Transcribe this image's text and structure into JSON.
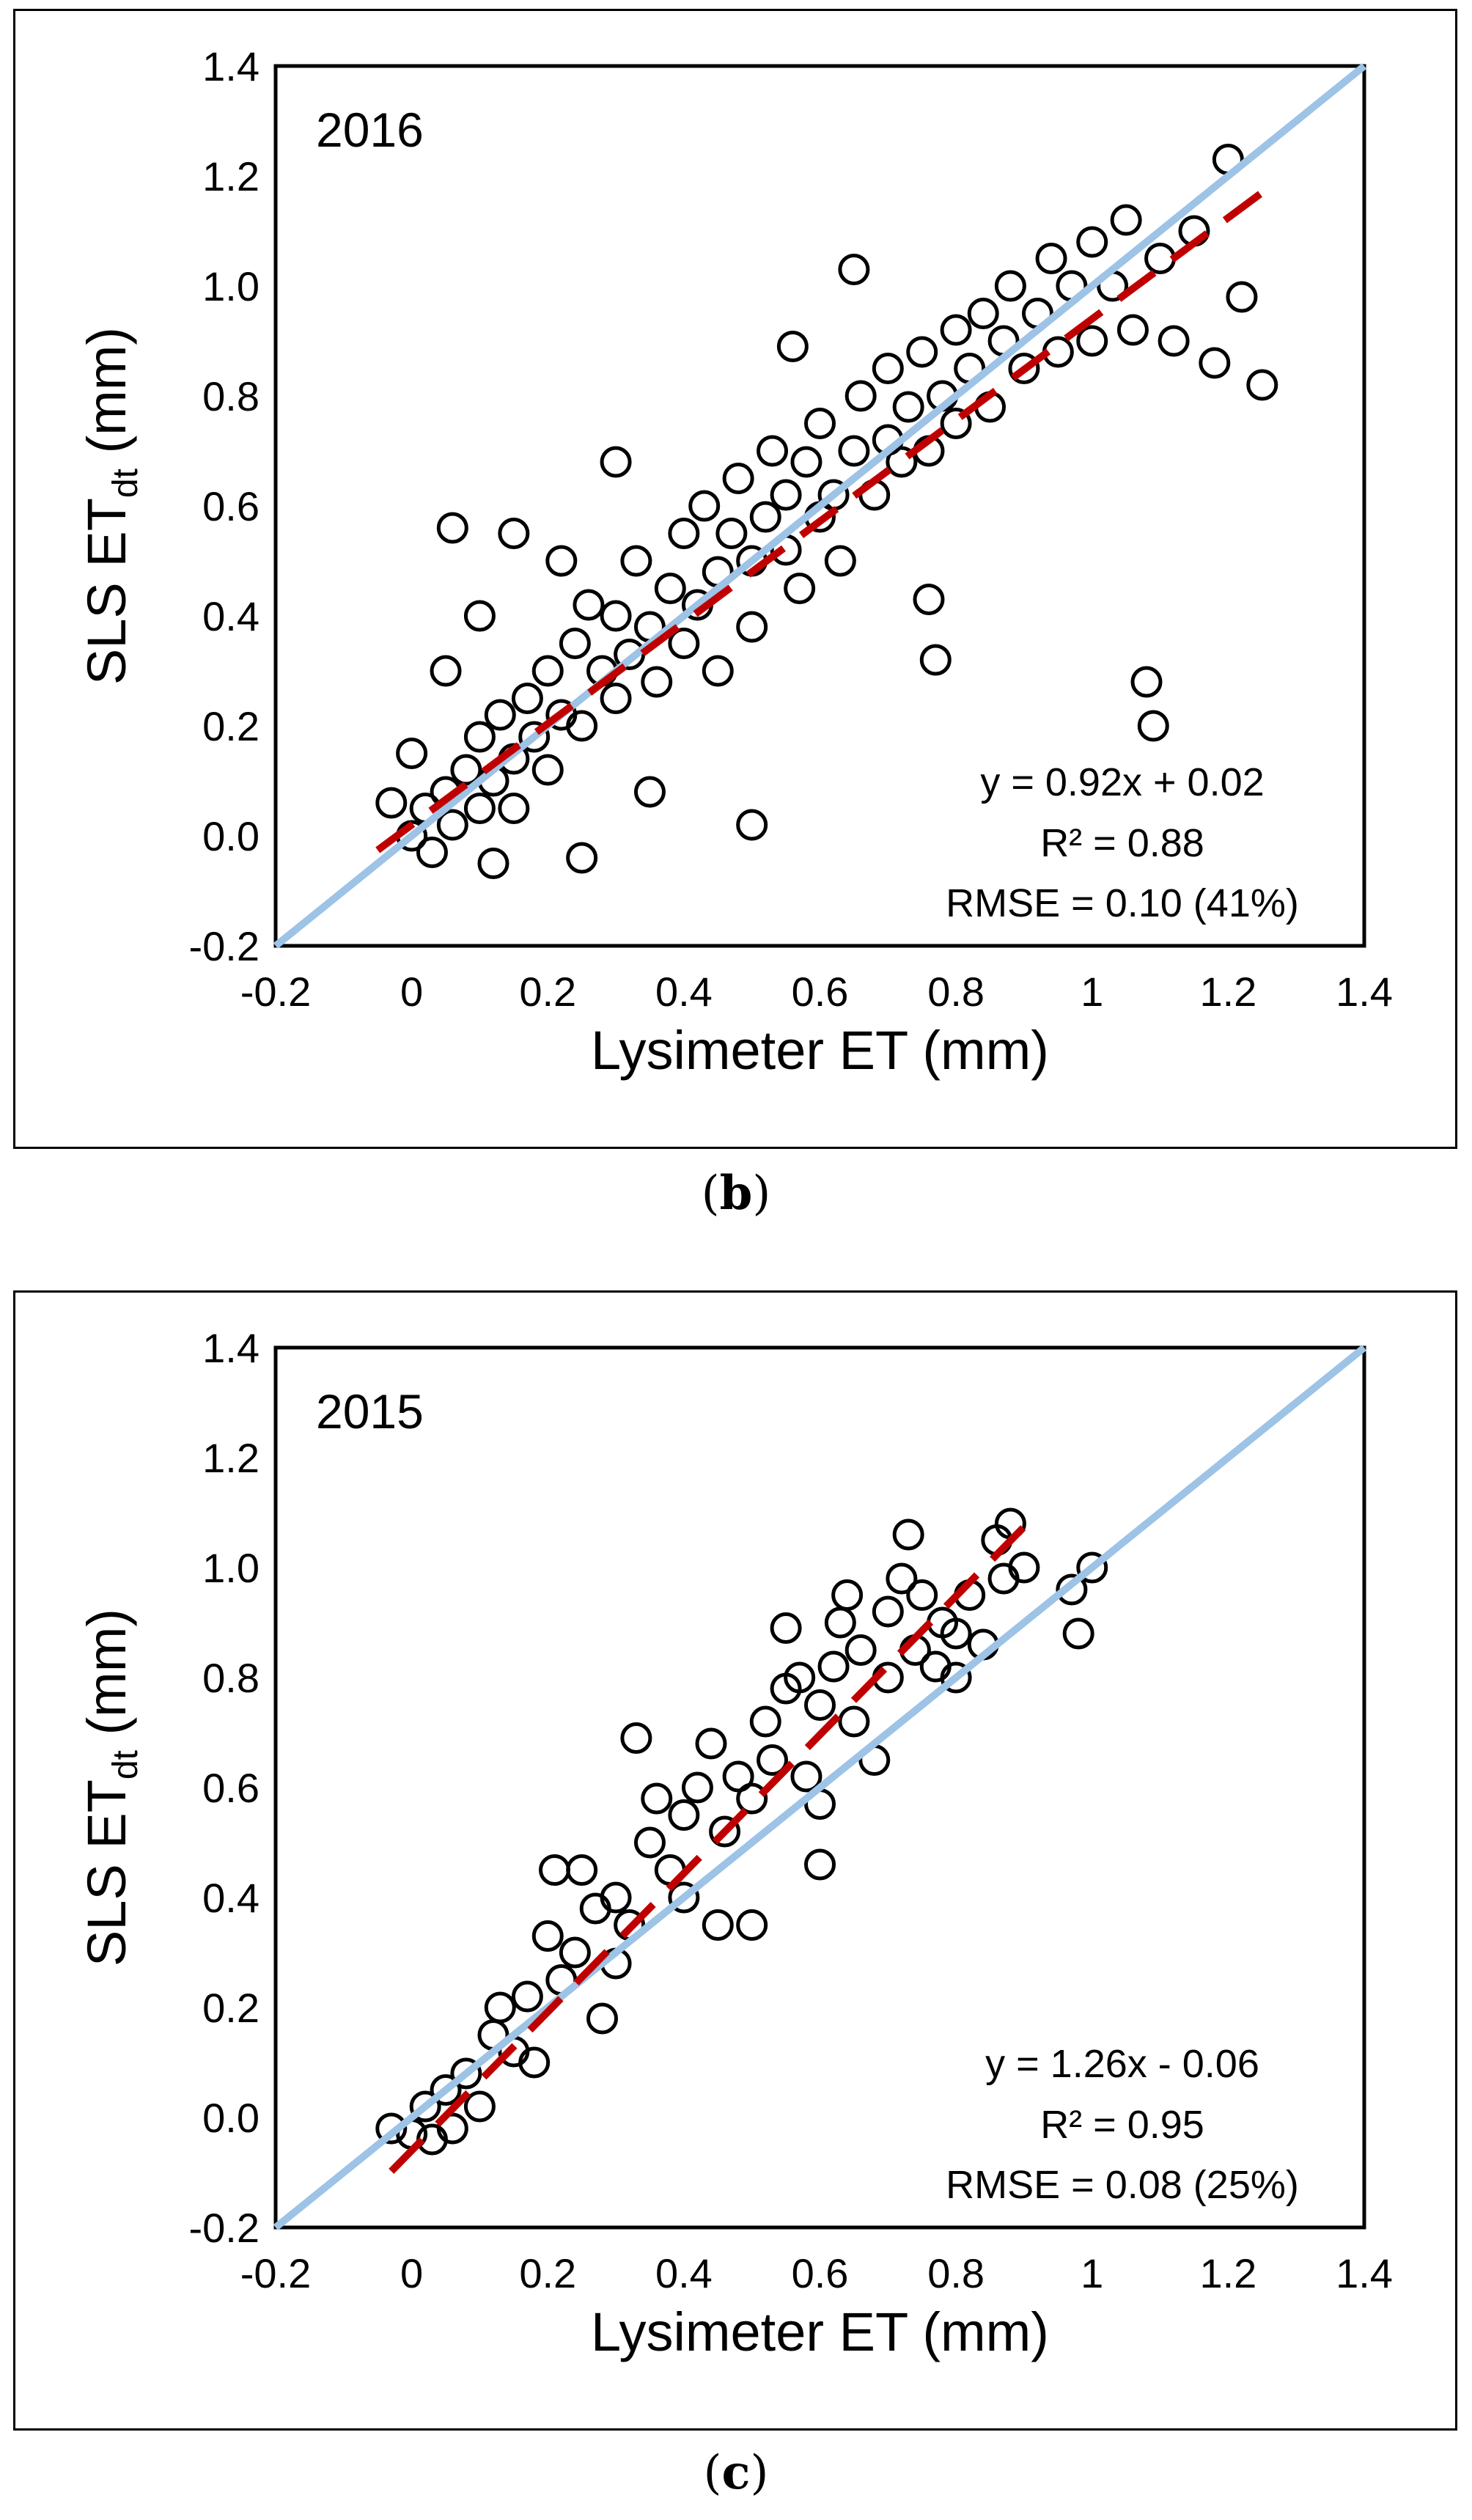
{
  "chart_data": [
    {
      "type": "scatter",
      "panel": "b",
      "year_label": "2016",
      "xlabel": "Lysimeter ET (mm)",
      "ylabel_main": "SLS ET",
      "ylabel_sub": "dt",
      "ylabel_unit": " (mm)",
      "xlim": [
        -0.2,
        1.4
      ],
      "ylim": [
        -0.2,
        1.4
      ],
      "x_ticks": [
        "-0.2",
        "0",
        "0.2",
        "0.4",
        "0.6",
        "0.8",
        "1",
        "1.2",
        "1.4"
      ],
      "y_ticks": [
        "-0.2",
        "0.0",
        "0.2",
        "0.4",
        "0.6",
        "0.8",
        "1.0",
        "1.2",
        "1.4"
      ],
      "x_tick_values": [
        -0.2,
        0,
        0.2,
        0.4,
        0.6,
        0.8,
        1.0,
        1.2,
        1.4
      ],
      "y_tick_values": [
        -0.2,
        0,
        0.2,
        0.4,
        0.6,
        0.8,
        1.0,
        1.2,
        1.4
      ],
      "regression": {
        "slope": 0.92,
        "intercept": 0.02,
        "x_range": [
          -0.05,
          1.25
        ],
        "color": "#c00000"
      },
      "one_to_one": {
        "x_range": [
          -0.2,
          1.4
        ],
        "color": "#9dc3e6"
      },
      "equation": "y = 0.92x + 0.02",
      "r2": "R² = 0.88",
      "rmse": "RMSE = 0.10 (41%)",
      "points": [
        [
          0.0,
          0.0
        ],
        [
          0.02,
          0.05
        ],
        [
          0.03,
          -0.03
        ],
        [
          0.05,
          0.08
        ],
        [
          0.06,
          0.02
        ],
        [
          0.08,
          0.12
        ],
        [
          0.1,
          0.05
        ],
        [
          0.1,
          0.18
        ],
        [
          0.12,
          0.1
        ],
        [
          0.13,
          0.22
        ],
        [
          0.15,
          0.14
        ],
        [
          0.15,
          0.05
        ],
        [
          0.17,
          0.25
        ],
        [
          0.18,
          0.18
        ],
        [
          0.2,
          0.3
        ],
        [
          0.2,
          0.12
        ],
        [
          0.22,
          0.22
        ],
        [
          0.24,
          0.35
        ],
        [
          0.25,
          0.2
        ],
        [
          0.26,
          0.42
        ],
        [
          0.28,
          0.3
        ],
        [
          0.3,
          0.25
        ],
        [
          0.3,
          0.4
        ],
        [
          0.32,
          0.33
        ],
        [
          0.33,
          0.5
        ],
        [
          0.35,
          0.38
        ],
        [
          0.36,
          0.28
        ],
        [
          0.38,
          0.45
        ],
        [
          0.4,
          0.35
        ],
        [
          0.4,
          0.55
        ],
        [
          0.42,
          0.42
        ],
        [
          0.43,
          0.6
        ],
        [
          0.45,
          0.48
        ],
        [
          0.45,
          0.3
        ],
        [
          0.47,
          0.55
        ],
        [
          0.48,
          0.65
        ],
        [
          0.5,
          0.5
        ],
        [
          0.5,
          0.38
        ],
        [
          0.52,
          0.58
        ],
        [
          0.53,
          0.7
        ],
        [
          0.55,
          0.52
        ],
        [
          0.55,
          0.62
        ],
        [
          0.57,
          0.45
        ],
        [
          0.58,
          0.68
        ],
        [
          0.6,
          0.58
        ],
        [
          0.6,
          0.75
        ],
        [
          0.62,
          0.62
        ],
        [
          0.63,
          0.5
        ],
        [
          0.65,
          0.7
        ],
        [
          0.66,
          0.8
        ],
        [
          0.68,
          0.62
        ],
        [
          0.7,
          0.72
        ],
        [
          0.7,
          0.85
        ],
        [
          0.72,
          0.68
        ],
        [
          0.73,
          0.78
        ],
        [
          0.75,
          0.88
        ],
        [
          0.76,
          0.7
        ],
        [
          0.78,
          0.8
        ],
        [
          0.8,
          0.92
        ],
        [
          0.8,
          0.75
        ],
        [
          0.82,
          0.85
        ],
        [
          0.84,
          0.95
        ],
        [
          0.85,
          0.78
        ],
        [
          0.87,
          0.9
        ],
        [
          0.88,
          1.0
        ],
        [
          0.9,
          0.85
        ],
        [
          0.92,
          0.95
        ],
        [
          0.94,
          1.05
        ],
        [
          0.95,
          0.88
        ],
        [
          0.97,
          1.0
        ],
        [
          1.0,
          1.08
        ],
        [
          1.0,
          0.9
        ],
        [
          1.03,
          1.0
        ],
        [
          1.05,
          1.12
        ],
        [
          1.06,
          0.92
        ],
        [
          1.08,
          0.28
        ],
        [
          1.09,
          0.2
        ],
        [
          1.1,
          1.05
        ],
        [
          1.12,
          0.9
        ],
        [
          1.15,
          1.1
        ],
        [
          1.18,
          0.86
        ],
        [
          1.2,
          1.23
        ],
        [
          1.22,
          0.98
        ],
        [
          1.25,
          0.82
        ],
        [
          0.06,
          0.56
        ],
        [
          0.15,
          0.55
        ],
        [
          0.22,
          0.5
        ],
        [
          0.3,
          0.68
        ],
        [
          0.5,
          0.02
        ],
        [
          0.56,
          0.89
        ],
        [
          0.65,
          1.03
        ],
        [
          0.77,
          0.32
        ],
        [
          0.76,
          0.43
        ],
        [
          0.35,
          0.08
        ],
        [
          0.25,
          -0.04
        ],
        [
          0.12,
          -0.05
        ],
        [
          0.0,
          0.15
        ],
        [
          -0.03,
          0.06
        ],
        [
          0.05,
          0.3
        ],
        [
          0.1,
          0.4
        ]
      ]
    },
    {
      "type": "scatter",
      "panel": "c",
      "year_label": "2015",
      "xlabel": "Lysimeter ET (mm)",
      "ylabel_main": "SLS ET",
      "ylabel_sub": "dt",
      "ylabel_unit": " (mm)",
      "xlim": [
        -0.2,
        1.4
      ],
      "ylim": [
        -0.2,
        1.4
      ],
      "x_ticks": [
        "-0.2",
        "0",
        "0.2",
        "0.4",
        "0.6",
        "0.8",
        "1",
        "1.2",
        "1.4"
      ],
      "y_ticks": [
        "-0.2",
        "0.0",
        "0.2",
        "0.4",
        "0.6",
        "0.8",
        "1.0",
        "1.2",
        "1.4"
      ],
      "x_tick_values": [
        -0.2,
        0,
        0.2,
        0.4,
        0.6,
        0.8,
        1.0,
        1.2,
        1.4
      ],
      "y_tick_values": [
        -0.2,
        0,
        0.2,
        0.4,
        0.6,
        0.8,
        1.0,
        1.2,
        1.4
      ],
      "regression": {
        "slope": 1.26,
        "intercept": -0.06,
        "x_range": [
          -0.03,
          0.9
        ],
        "color": "#c00000"
      },
      "one_to_one": {
        "x_range": [
          -0.2,
          1.4
        ],
        "color": "#9dc3e6"
      },
      "equation": "y = 1.26x - 0.06",
      "r2": "R² = 0.95",
      "rmse": "RMSE = 0.08 (25%)",
      "points": [
        [
          -0.03,
          -0.02
        ],
        [
          0.0,
          -0.03
        ],
        [
          0.02,
          0.02
        ],
        [
          0.03,
          -0.04
        ],
        [
          0.05,
          0.05
        ],
        [
          0.06,
          -0.02
        ],
        [
          0.08,
          0.08
        ],
        [
          0.1,
          0.02
        ],
        [
          0.12,
          0.15
        ],
        [
          0.13,
          0.2
        ],
        [
          0.15,
          0.12
        ],
        [
          0.17,
          0.22
        ],
        [
          0.18,
          0.1
        ],
        [
          0.2,
          0.33
        ],
        [
          0.21,
          0.45
        ],
        [
          0.22,
          0.25
        ],
        [
          0.24,
          0.3
        ],
        [
          0.25,
          0.45
        ],
        [
          0.27,
          0.38
        ],
        [
          0.28,
          0.18
        ],
        [
          0.3,
          0.4
        ],
        [
          0.3,
          0.28
        ],
        [
          0.32,
          0.35
        ],
        [
          0.33,
          0.69
        ],
        [
          0.35,
          0.5
        ],
        [
          0.36,
          0.58
        ],
        [
          0.38,
          0.45
        ],
        [
          0.4,
          0.55
        ],
        [
          0.4,
          0.4
        ],
        [
          0.42,
          0.6
        ],
        [
          0.44,
          0.68
        ],
        [
          0.45,
          0.35
        ],
        [
          0.46,
          0.52
        ],
        [
          0.48,
          0.62
        ],
        [
          0.5,
          0.35
        ],
        [
          0.5,
          0.58
        ],
        [
          0.52,
          0.72
        ],
        [
          0.53,
          0.65
        ],
        [
          0.55,
          0.89
        ],
        [
          0.55,
          0.78
        ],
        [
          0.57,
          0.8
        ],
        [
          0.58,
          0.62
        ],
        [
          0.6,
          0.57
        ],
        [
          0.6,
          0.75
        ],
        [
          0.62,
          0.82
        ],
        [
          0.63,
          0.9
        ],
        [
          0.64,
          0.95
        ],
        [
          0.65,
          0.72
        ],
        [
          0.66,
          0.85
        ],
        [
          0.68,
          0.65
        ],
        [
          0.7,
          0.8
        ],
        [
          0.7,
          0.92
        ],
        [
          0.72,
          0.98
        ],
        [
          0.73,
          1.06
        ],
        [
          0.74,
          0.85
        ],
        [
          0.75,
          0.95
        ],
        [
          0.77,
          0.82
        ],
        [
          0.78,
          0.9
        ],
        [
          0.8,
          0.8
        ],
        [
          0.8,
          0.88
        ],
        [
          0.82,
          0.95
        ],
        [
          0.84,
          0.86
        ],
        [
          0.86,
          1.05
        ],
        [
          0.87,
          0.98
        ],
        [
          0.88,
          1.08
        ],
        [
          0.9,
          1.0
        ],
        [
          0.97,
          0.96
        ],
        [
          0.98,
          0.88
        ],
        [
          1.0,
          1.0
        ],
        [
          0.6,
          0.46
        ]
      ]
    }
  ],
  "captions": {
    "b": "b",
    "c": "c"
  }
}
